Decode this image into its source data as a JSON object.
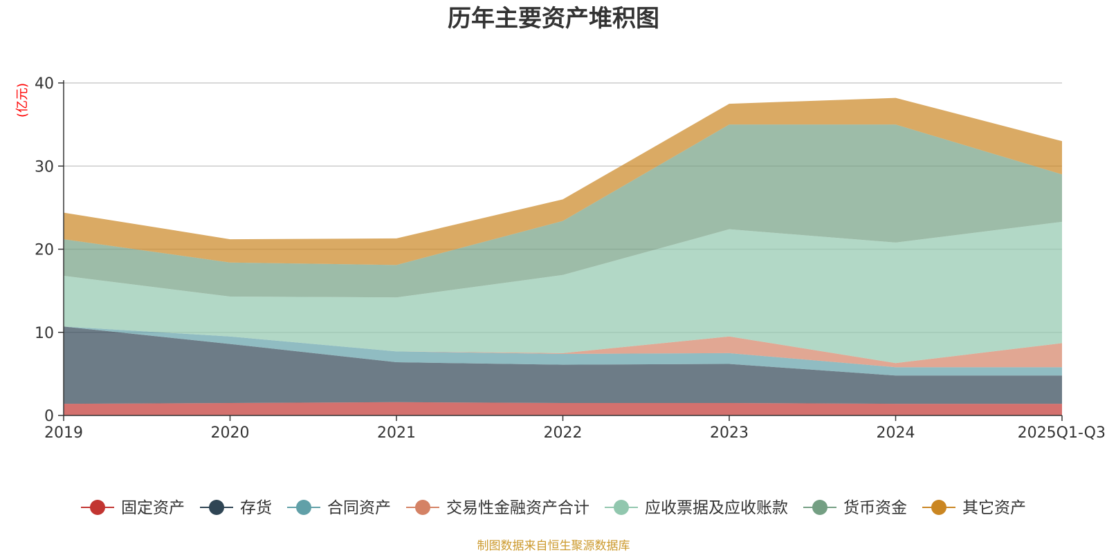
{
  "chart_data": {
    "type": "area",
    "stacked": true,
    "title": "历年主要资产堆积图",
    "unit_label": "(亿元)",
    "categories": [
      "2019",
      "2020",
      "2021",
      "2022",
      "2023",
      "2024",
      "2025Q1-Q3"
    ],
    "ylim": [
      0,
      40
    ],
    "yticks": [
      0,
      10,
      20,
      30,
      40
    ],
    "grid": true,
    "legend_position": "bottom",
    "series": [
      {
        "name": "固定资产",
        "color": "#c23531",
        "values": [
          1.4,
          1.5,
          1.6,
          1.5,
          1.5,
          1.4,
          1.4
        ]
      },
      {
        "name": "存货",
        "color": "#2f4554",
        "values": [
          9.3,
          7.1,
          4.8,
          4.6,
          4.7,
          3.4,
          3.4
        ]
      },
      {
        "name": "合同资产",
        "color": "#61a0a8",
        "values": [
          0.0,
          0.9,
          1.3,
          1.3,
          1.3,
          1.0,
          1.0
        ]
      },
      {
        "name": "交易性金融资产合计",
        "color": "#d48265",
        "values": [
          0.0,
          0.0,
          0.0,
          0.1,
          2.0,
          0.5,
          2.9
        ]
      },
      {
        "name": "应收票据及应收账款",
        "color": "#91c7ae",
        "values": [
          6.1,
          4.8,
          6.5,
          9.4,
          12.9,
          14.5,
          14.6
        ]
      },
      {
        "name": "货币资金",
        "color": "#749f83",
        "values": [
          4.4,
          4.1,
          3.9,
          6.5,
          12.6,
          14.2,
          5.7
        ]
      },
      {
        "name": "其它资产",
        "color": "#ca8622",
        "values": [
          3.2,
          2.8,
          3.2,
          2.6,
          2.5,
          3.2,
          4.0
        ]
      }
    ],
    "source": "制图数据来自恒生聚源数据库"
  }
}
